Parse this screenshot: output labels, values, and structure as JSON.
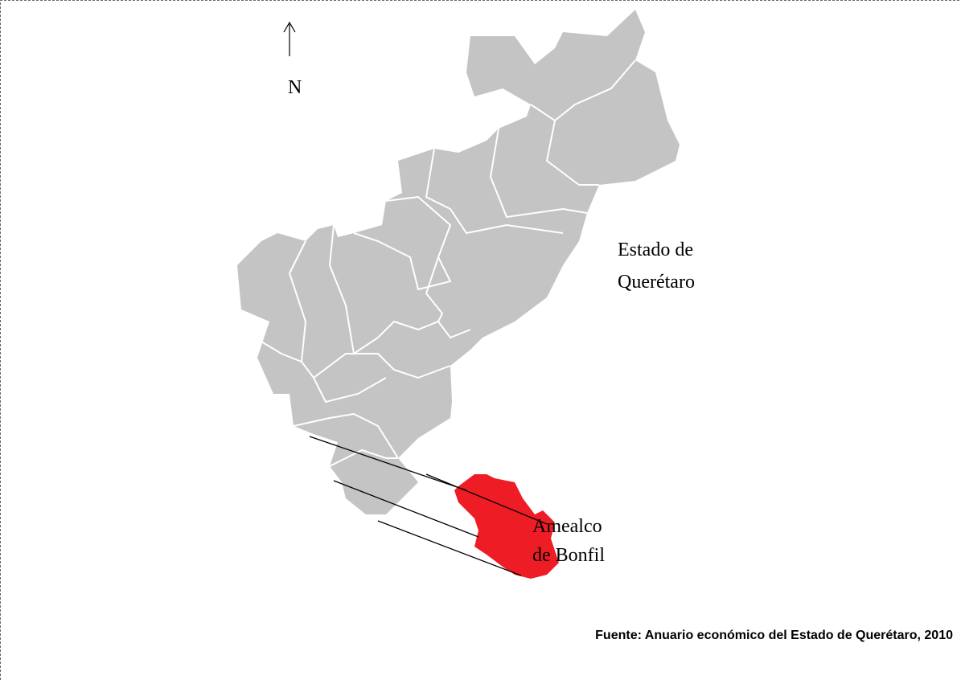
{
  "map": {
    "north_label": "N",
    "state_label": [
      "Estado de",
      "Querétaro"
    ],
    "highlight_label": [
      "Amealco",
      "de Bonfil"
    ],
    "source": "Fuente: Anuario económico del Estado de Querétaro, 2010"
  }
}
